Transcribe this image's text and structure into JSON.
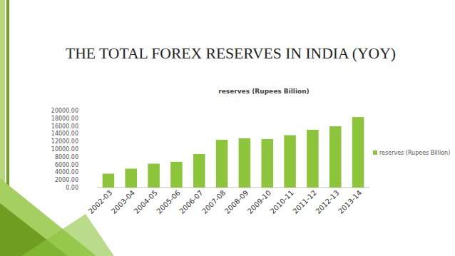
{
  "slide": {
    "title": "THE TOTAL FOREX RESERVES IN INDIA (YOY)"
  },
  "chart_data": {
    "type": "bar",
    "title": "reserves (Rupees Billion)",
    "categories": [
      "2002-03",
      "2003-04",
      "2004-05",
      "2005-06",
      "2006-07",
      "2007-08",
      "2008-09",
      "2009-10",
      "2010-11",
      "2011-12",
      "2012-13",
      "2013-14"
    ],
    "series": [
      {
        "name": "reserves (Rupees Billion)",
        "color": "#8cc43c",
        "values": [
          3600,
          4900,
          6200,
          6700,
          8700,
          12400,
          12800,
          12600,
          13600,
          15000,
          15900,
          18300
        ]
      }
    ],
    "ylim": [
      0,
      20000
    ],
    "yticks": [
      {
        "value": 0,
        "label": "0.00"
      },
      {
        "value": 2000,
        "label": "2000.00"
      },
      {
        "value": 4000,
        "label": "4000.00"
      },
      {
        "value": 6000,
        "label": "6000.00"
      },
      {
        "value": 8000,
        "label": "8000.00"
      },
      {
        "value": 10000,
        "label": "10000.00"
      },
      {
        "value": 12000,
        "label": "12000.00"
      },
      {
        "value": 14000,
        "label": "14000.00"
      },
      {
        "value": 16000,
        "label": "16000.00"
      },
      {
        "value": 18000,
        "label": "18000.00"
      },
      {
        "value": 20000,
        "label": "20000.00"
      }
    ],
    "grid": false,
    "legend": "right"
  }
}
